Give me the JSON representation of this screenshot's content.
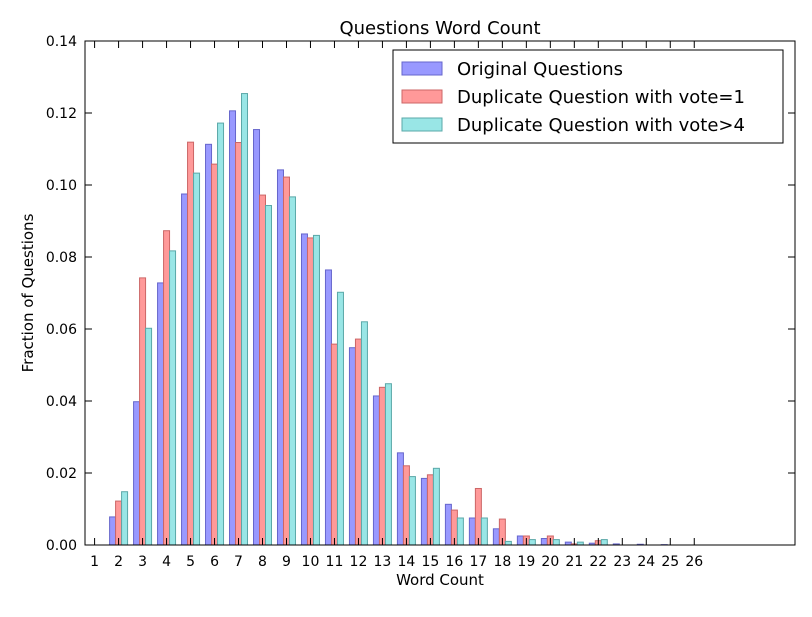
{
  "chart_data": {
    "type": "bar",
    "title": "Questions Word Count",
    "xlabel": "Word Count",
    "ylabel": "Fraction of Questions",
    "x_ticks": [
      "1",
      "2",
      "3",
      "4",
      "5",
      "6",
      "7",
      "8",
      "9",
      "10",
      "11",
      "12",
      "13",
      "14",
      "15",
      "16",
      "17",
      "18",
      "19",
      "20",
      "21",
      "22",
      "23",
      "24",
      "25",
      "26"
    ],
    "y_ticks": [
      "0.00",
      "0.02",
      "0.04",
      "0.06",
      "0.08",
      "0.10",
      "0.12",
      "0.14"
    ],
    "ylim": [
      0,
      0.14
    ],
    "xlim": [
      0.6,
      30.2
    ],
    "grid": false,
    "legend_position": "upper-right",
    "series": [
      {
        "name": "Original Questions",
        "color": "#9999ff",
        "edge": "#6666cc",
        "x": [
          2,
          3,
          4,
          5,
          6,
          7,
          8,
          9,
          10,
          11,
          12,
          13,
          14,
          15,
          16,
          17,
          18,
          19,
          20,
          21,
          22,
          23,
          24,
          25
        ],
        "values": [
          0.0078,
          0.0398,
          0.0728,
          0.0975,
          0.1113,
          0.1206,
          0.1154,
          0.1042,
          0.0864,
          0.0764,
          0.0548,
          0.0414,
          0.0256,
          0.0185,
          0.0113,
          0.0075,
          0.0045,
          0.0025,
          0.0018,
          0.0008,
          0.0005,
          0.0003,
          0.0002,
          0.0001
        ]
      },
      {
        "name": "Duplicate Question with vote=1",
        "color": "#ff9999",
        "edge": "#cc6666",
        "x": [
          2,
          3,
          4,
          5,
          6,
          7,
          8,
          9,
          10,
          11,
          12,
          13,
          14,
          15,
          16,
          17,
          18,
          19,
          20,
          21,
          22
        ],
        "values": [
          0.0122,
          0.0742,
          0.0873,
          0.1119,
          0.1058,
          0.1118,
          0.0972,
          0.1022,
          0.0853,
          0.0558,
          0.0572,
          0.0438,
          0.022,
          0.0195,
          0.0097,
          0.0157,
          0.0072,
          0.0025,
          0.0025,
          0.0003,
          0.0012
        ]
      },
      {
        "name": "Duplicate Question with vote>4",
        "color": "#99e6e6",
        "edge": "#5aa8a8",
        "x": [
          2,
          3,
          4,
          5,
          6,
          7,
          8,
          9,
          10,
          11,
          12,
          13,
          14,
          15,
          16,
          17,
          18,
          19,
          20,
          21,
          22
        ],
        "values": [
          0.0148,
          0.0602,
          0.0817,
          0.1033,
          0.1172,
          0.1254,
          0.0943,
          0.0967,
          0.086,
          0.0702,
          0.062,
          0.0448,
          0.019,
          0.0213,
          0.0075,
          0.0075,
          0.001,
          0.0015,
          0.0015,
          0.0008,
          0.0015
        ]
      }
    ]
  }
}
